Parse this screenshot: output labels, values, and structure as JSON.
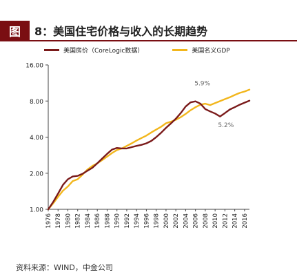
{
  "figure": {
    "tag": "图",
    "title": "8：美国住宅价格与收入的长期趋势",
    "source": "资料来源：WIND，中金公司"
  },
  "colors": {
    "accent": "#7a0e12",
    "housing": "#7a1a1a",
    "gdp": "#f2b61c"
  },
  "chart_data": {
    "type": "line",
    "title": "8：美国住宅价格与收入的长期趋势",
    "xlabel": "",
    "ylabel": "",
    "log_scale_y": true,
    "ylim": [
      1.0,
      16.0
    ],
    "yticks": [
      "1.00",
      "2.00",
      "4.00",
      "8.00",
      "16.00"
    ],
    "xlim": [
      1976,
      2017
    ],
    "xticks": [
      "1976",
      "1978",
      "1980",
      "1982",
      "1984",
      "1986",
      "1988",
      "1990",
      "1992",
      "1994",
      "1996",
      "1998",
      "2000",
      "2002",
      "2004",
      "2006",
      "2008",
      "2010",
      "2012",
      "2014",
      "2016"
    ],
    "grid": false,
    "legend": "top",
    "series": [
      {
        "name": "美国房价（CoreLogic数据）",
        "color": "#7a1a1a",
        "points": [
          [
            1976,
            1.0
          ],
          [
            1977,
            1.15
          ],
          [
            1978,
            1.35
          ],
          [
            1979,
            1.6
          ],
          [
            1980,
            1.78
          ],
          [
            1981,
            1.88
          ],
          [
            1982,
            1.9
          ],
          [
            1983,
            1.98
          ],
          [
            1984,
            2.1
          ],
          [
            1985,
            2.22
          ],
          [
            1986,
            2.42
          ],
          [
            1987,
            2.65
          ],
          [
            1988,
            2.9
          ],
          [
            1989,
            3.15
          ],
          [
            1990,
            3.25
          ],
          [
            1991,
            3.22
          ],
          [
            1992,
            3.22
          ],
          [
            1993,
            3.3
          ],
          [
            1994,
            3.38
          ],
          [
            1995,
            3.45
          ],
          [
            1996,
            3.55
          ],
          [
            1997,
            3.72
          ],
          [
            1998,
            4.0
          ],
          [
            1999,
            4.35
          ],
          [
            2000,
            4.78
          ],
          [
            2001,
            5.2
          ],
          [
            2002,
            5.7
          ],
          [
            2003,
            6.35
          ],
          [
            2004,
            7.2
          ],
          [
            2005,
            7.8
          ],
          [
            2006,
            7.95
          ],
          [
            2007,
            7.6
          ],
          [
            2008,
            6.85
          ],
          [
            2009,
            6.55
          ],
          [
            2010,
            6.3
          ],
          [
            2011,
            5.95
          ],
          [
            2012,
            6.35
          ],
          [
            2013,
            6.8
          ],
          [
            2014,
            7.1
          ],
          [
            2015,
            7.45
          ],
          [
            2016,
            7.75
          ],
          [
            2017,
            8.05
          ]
        ]
      },
      {
        "name": "美国名义GDP",
        "color": "#f2b61c",
        "points": [
          [
            1976,
            1.0
          ],
          [
            1977,
            1.12
          ],
          [
            1978,
            1.27
          ],
          [
            1979,
            1.43
          ],
          [
            1980,
            1.55
          ],
          [
            1981,
            1.72
          ],
          [
            1982,
            1.78
          ],
          [
            1983,
            1.95
          ],
          [
            1984,
            2.15
          ],
          [
            1985,
            2.3
          ],
          [
            1986,
            2.42
          ],
          [
            1987,
            2.57
          ],
          [
            1988,
            2.75
          ],
          [
            1989,
            2.95
          ],
          [
            1990,
            3.12
          ],
          [
            1991,
            3.22
          ],
          [
            1992,
            3.38
          ],
          [
            1993,
            3.55
          ],
          [
            1994,
            3.75
          ],
          [
            1995,
            3.93
          ],
          [
            1996,
            4.12
          ],
          [
            1997,
            4.38
          ],
          [
            1998,
            4.62
          ],
          [
            1999,
            4.88
          ],
          [
            2000,
            5.22
          ],
          [
            2001,
            5.38
          ],
          [
            2002,
            5.58
          ],
          [
            2003,
            5.87
          ],
          [
            2004,
            6.25
          ],
          [
            2005,
            6.7
          ],
          [
            2006,
            7.1
          ],
          [
            2007,
            7.45
          ],
          [
            2008,
            7.6
          ],
          [
            2009,
            7.4
          ],
          [
            2010,
            7.68
          ],
          [
            2011,
            7.98
          ],
          [
            2012,
            8.3
          ],
          [
            2013,
            8.6
          ],
          [
            2014,
            8.98
          ],
          [
            2015,
            9.35
          ],
          [
            2016,
            9.6
          ],
          [
            2017,
            9.95
          ]
        ]
      }
    ],
    "annotations": [
      {
        "text": "5.9%",
        "x": 2005.8,
        "y": 10.8
      },
      {
        "text": "5.2%",
        "x": 2010.6,
        "y": 4.85
      }
    ]
  }
}
